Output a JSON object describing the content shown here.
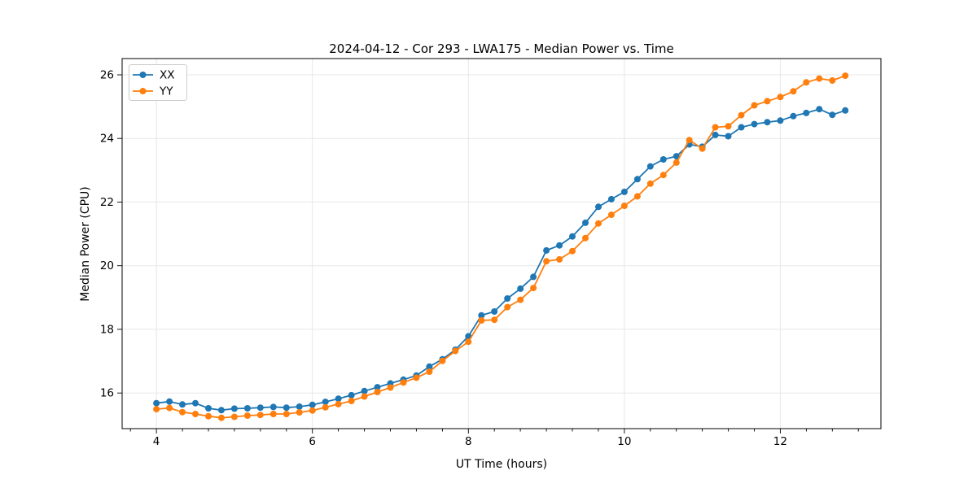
{
  "chart_data": {
    "type": "line",
    "title": "2024-04-12 - Cor 293 - LWA175 - Median Power vs. Time",
    "xlabel": "UT Time (hours)",
    "ylabel": "Median Power (CPU)",
    "xlim": [
      3.56,
      13.29
    ],
    "ylim": [
      14.88,
      26.51
    ],
    "x_major_ticks": [
      4,
      6,
      8,
      10,
      12
    ],
    "y_major_ticks": [
      16,
      18,
      20,
      22,
      24,
      26
    ],
    "x_minor_step": 0.333,
    "grid": true,
    "legend_position": "upper-left",
    "x": [
      4,
      4.167,
      4.333,
      4.5,
      4.667,
      4.833,
      5,
      5.167,
      5.333,
      5.5,
      5.667,
      5.833,
      6,
      6.167,
      6.333,
      6.5,
      6.667,
      6.833,
      7,
      7.167,
      7.333,
      7.5,
      7.667,
      7.833,
      8,
      8.167,
      8.333,
      8.5,
      8.667,
      8.833,
      9,
      9.167,
      9.333,
      9.5,
      9.667,
      9.833,
      10,
      10.167,
      10.333,
      10.5,
      10.667,
      10.833,
      11,
      11.167,
      11.333,
      11.5,
      11.667,
      11.833,
      12,
      12.167,
      12.333,
      12.5,
      12.667,
      12.833
    ],
    "series": [
      {
        "name": "XX",
        "color": "#1f77b4",
        "values": [
          15.68,
          15.73,
          15.64,
          15.68,
          15.52,
          15.46,
          15.51,
          15.52,
          15.54,
          15.56,
          15.54,
          15.57,
          15.63,
          15.72,
          15.82,
          15.93,
          16.06,
          16.18,
          16.3,
          16.42,
          16.55,
          16.83,
          17.06,
          17.36,
          17.78,
          18.44,
          18.56,
          18.97,
          19.28,
          19.65,
          20.48,
          20.64,
          20.92,
          21.35,
          21.85,
          22.09,
          22.32,
          22.72,
          23.12,
          23.34,
          23.44,
          23.81,
          23.74,
          24.11,
          24.07,
          24.35,
          24.45,
          24.51,
          24.56,
          24.7,
          24.8,
          24.92,
          24.74,
          24.88
        ]
      },
      {
        "name": "YY",
        "color": "#ff7f0e",
        "values": [
          15.49,
          15.53,
          15.4,
          15.34,
          15.27,
          15.22,
          15.25,
          15.29,
          15.31,
          15.34,
          15.34,
          15.39,
          15.45,
          15.55,
          15.65,
          15.75,
          15.89,
          16.03,
          16.17,
          16.33,
          16.48,
          16.67,
          17.01,
          17.32,
          17.61,
          18.28,
          18.3,
          18.7,
          18.93,
          19.3,
          20.14,
          20.2,
          20.46,
          20.87,
          21.33,
          21.6,
          21.88,
          22.18,
          22.58,
          22.85,
          23.24,
          23.95,
          23.68,
          24.35,
          24.38,
          24.73,
          25.04,
          25.17,
          25.3,
          25.48,
          25.76,
          25.88,
          25.82,
          25.97
        ]
      }
    ]
  }
}
